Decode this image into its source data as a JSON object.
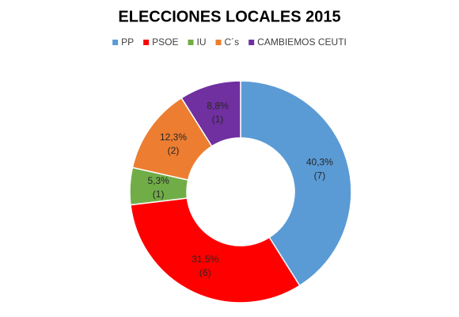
{
  "chart_data": {
    "type": "donut",
    "title": "ELECCIONES LOCALES 2015",
    "categories": [
      "PP",
      "PSOE",
      "IU",
      "C´s",
      "CAMBIEMOS CEUTI"
    ],
    "values": [
      40.3,
      31.5,
      5.3,
      12.3,
      8.8
    ],
    "value_labels": [
      "40,3%",
      "31,5%",
      "5,3%",
      "12,3%",
      "8,8%"
    ],
    "seats": [
      7,
      6,
      1,
      2,
      1
    ],
    "seat_labels": [
      "(7)",
      "(6)",
      "(1)",
      "(2)",
      "(1)"
    ],
    "colors": [
      "#5b9bd5",
      "#ff0000",
      "#70ad47",
      "#ed7d31",
      "#7030a0"
    ],
    "legend": "top"
  }
}
